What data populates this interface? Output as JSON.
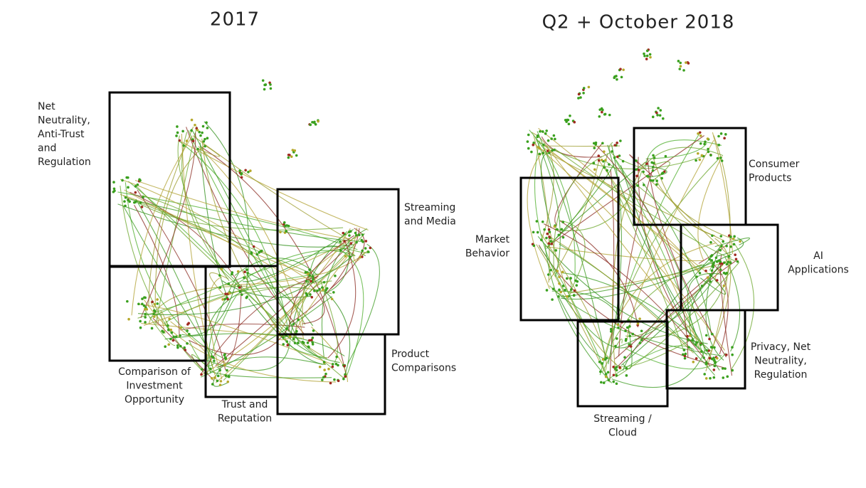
{
  "panels": [
    {
      "title": "2017",
      "regions": [
        {
          "label": [
            "Net",
            "Neutrality,",
            "Anti-Trust",
            "and",
            "Regulation"
          ]
        },
        {
          "label": [
            "Comparison of",
            "Investment",
            "Opportunity"
          ]
        },
        {
          "label": [
            "Trust and",
            "Reputation"
          ]
        },
        {
          "label": [
            "Streaming",
            "and Media"
          ]
        },
        {
          "label": [
            "Product",
            "Comparisons"
          ]
        }
      ]
    },
    {
      "title": "Q2 + October 2018",
      "regions": [
        {
          "label": [
            "Consumer",
            "Products"
          ]
        },
        {
          "label": [
            "Market",
            "Behavior"
          ]
        },
        {
          "label": [
            "AI",
            "Applications"
          ]
        },
        {
          "label": [
            "Privacy, Net",
            "Neutrality,",
            "Regulation"
          ]
        },
        {
          "label": [
            "Streaming /",
            "Cloud"
          ]
        }
      ]
    }
  ]
}
